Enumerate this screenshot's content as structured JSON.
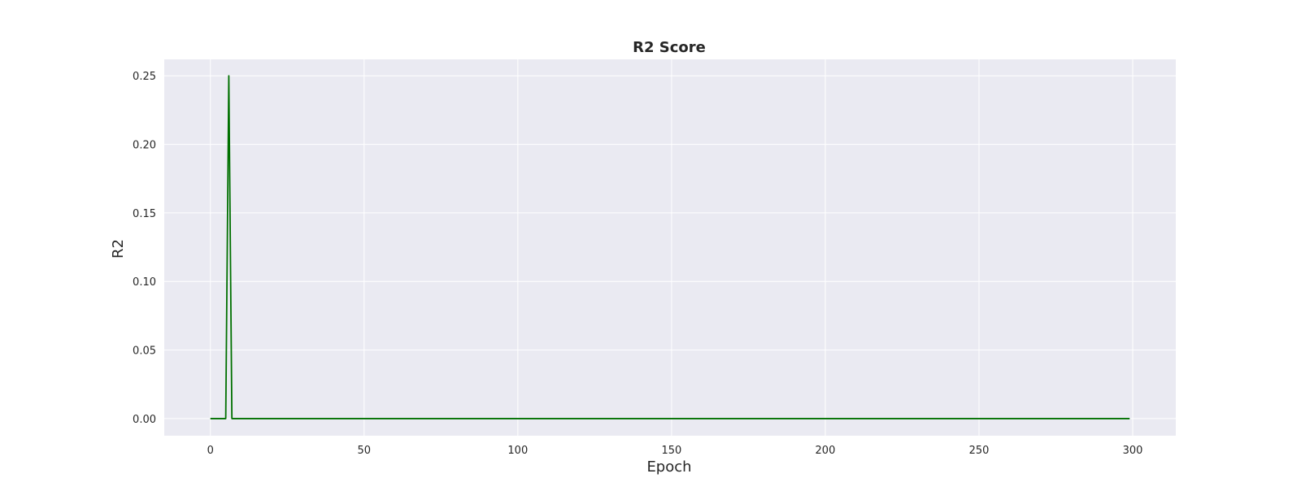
{
  "chart_data": {
    "type": "line",
    "title": "R2 Score",
    "xlabel": "Epoch",
    "ylabel": "R2",
    "xlim": [
      -15,
      314
    ],
    "ylim": [
      -0.0125,
      0.262
    ],
    "xticks": [
      0,
      50,
      100,
      150,
      200,
      250,
      300
    ],
    "yticks": [
      0.0,
      0.05,
      0.1,
      0.15,
      0.2,
      0.25
    ],
    "ytick_labels": [
      "0.00",
      "0.05",
      "0.10",
      "0.15",
      "0.20",
      "0.25"
    ],
    "grid": true,
    "background_color": "#eaeaf2",
    "grid_color": "#ffffff",
    "series": [
      {
        "color": "#007000",
        "x": [
          0,
          1,
          2,
          3,
          4,
          5,
          6,
          7,
          8,
          299
        ],
        "y": [
          0,
          0,
          0,
          0,
          0,
          0,
          0.25,
          0,
          0,
          0
        ]
      }
    ]
  }
}
